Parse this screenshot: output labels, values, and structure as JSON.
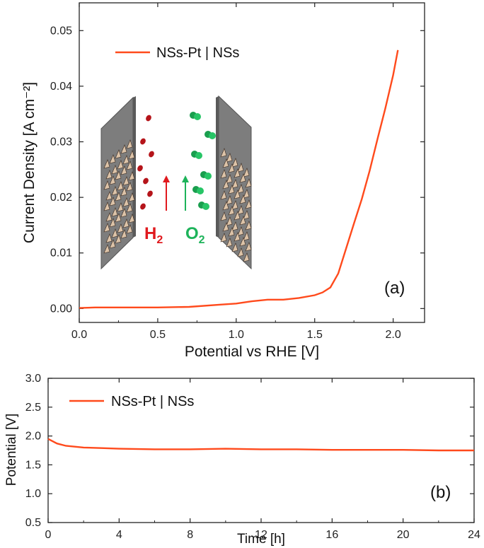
{
  "colors": {
    "series": "#ff4a1c",
    "h2": "#e0191e",
    "o2": "#1db35a",
    "electrode": "#7a7a7a",
    "nanosheet": "#dcc3a8"
  },
  "chart_data": [
    {
      "type": "line",
      "panel_label": "(a)",
      "xlabel": "Potential vs RHE [V]",
      "ylabel": "Current Density [A cm⁻²]",
      "xlim": [
        0,
        2.2
      ],
      "ylim": [
        -0.0025,
        0.055
      ],
      "xticks": [
        "0.0",
        "0.5",
        "1.0",
        "1.5",
        "2.0"
      ],
      "xtick_values": [
        0,
        0.5,
        1.0,
        1.5,
        2.0
      ],
      "yticks": [
        "0.00",
        "0.01",
        "0.02",
        "0.03",
        "0.04",
        "0.05"
      ],
      "ytick_values": [
        0,
        0.01,
        0.02,
        0.03,
        0.04,
        0.05
      ],
      "legend_position": "top-left",
      "inset": {
        "left_species": "H₂",
        "right_species": "O₂"
      },
      "series": [
        {
          "name": "NSs-Pt | NSs",
          "x": [
            0,
            0.1,
            0.3,
            0.5,
            0.7,
            0.9,
            1.0,
            1.1,
            1.2,
            1.3,
            1.4,
            1.5,
            1.55,
            1.6,
            1.65,
            1.7,
            1.75,
            1.8,
            1.85,
            1.9,
            1.95,
            2.0,
            2.03
          ],
          "y": [
            0.0001,
            0.0002,
            0.0002,
            0.0002,
            0.0003,
            0.0007,
            0.0009,
            0.0013,
            0.0016,
            0.0016,
            0.0019,
            0.0024,
            0.0029,
            0.0038,
            0.0063,
            0.0108,
            0.0153,
            0.0197,
            0.0248,
            0.0305,
            0.036,
            0.042,
            0.0465
          ]
        }
      ]
    },
    {
      "type": "line",
      "panel_label": "(b)",
      "xlabel": "Time [h]",
      "ylabel": "Potential [V]",
      "xlim": [
        0,
        24
      ],
      "ylim": [
        0.5,
        3.0
      ],
      "xticks": [
        "0",
        "4",
        "8",
        "12",
        "16",
        "20",
        "24"
      ],
      "xtick_values": [
        0,
        4,
        8,
        12,
        16,
        20,
        24
      ],
      "yticks": [
        "0.5",
        "1.0",
        "1.5",
        "2.0",
        "2.5",
        "3.0"
      ],
      "ytick_values": [
        0.5,
        1.0,
        1.5,
        2.0,
        2.5,
        3.0
      ],
      "legend_position": "top-left",
      "series": [
        {
          "name": "NSs-Pt | NSs",
          "x": [
            0,
            0.5,
            1,
            2,
            3,
            4,
            6,
            8,
            10,
            12,
            14,
            16,
            18,
            20,
            22,
            24
          ],
          "y": [
            1.95,
            1.87,
            1.83,
            1.8,
            1.79,
            1.78,
            1.77,
            1.77,
            1.78,
            1.77,
            1.77,
            1.76,
            1.76,
            1.76,
            1.75,
            1.75
          ]
        }
      ]
    }
  ]
}
